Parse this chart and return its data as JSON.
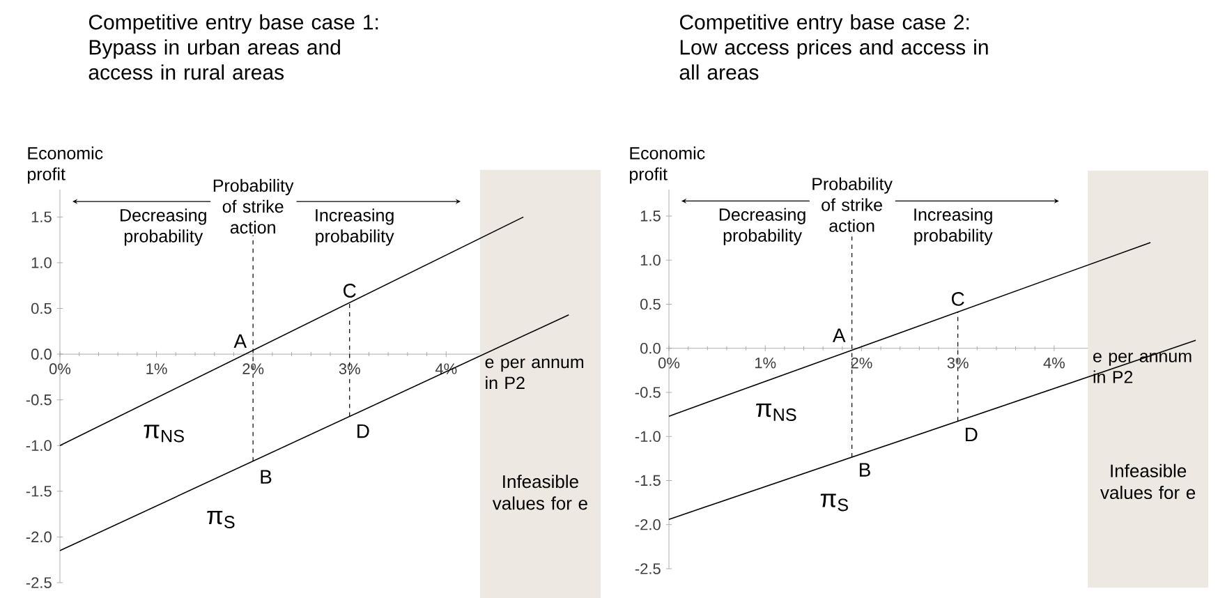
{
  "chart_data": [
    {
      "type": "line",
      "title": "Competitive entry base case 1:",
      "subtitle": "Bypass in urban areas and access in rural areas",
      "xlabel": "e per annum in P2",
      "ylabel": "Economic profit",
      "xlim": [
        0,
        5.6
      ],
      "ylim": [
        -2.5,
        1.8
      ],
      "xticks": [
        {
          "value": 0,
          "label": "0%"
        },
        {
          "value": 1,
          "label": "1%"
        },
        {
          "value": 2,
          "label": "2%"
        },
        {
          "value": 3,
          "label": "3%"
        },
        {
          "value": 4,
          "label": "4%"
        }
      ],
      "yticks": [
        1.5,
        {
          "value": 1,
          "label": "1.0"
        },
        0.5,
        {
          "value": 0,
          "label": "0.0"
        },
        -0.5,
        {
          "value": -1,
          "label": "-1.0"
        },
        -1.5,
        {
          "value": -2,
          "label": "-2.0"
        },
        -2.5
      ],
      "series": [
        {
          "name": "π$_{NS}$",
          "color": "#000000",
          "x": [
            0,
            4.8
          ],
          "values": [
            -1.0,
            1.5
          ]
        },
        {
          "name": "π$_{S}$",
          "color": "#000000",
          "x": [
            0,
            5.27
          ],
          "values": [
            -2.15,
            0.43
          ]
        }
      ],
      "ref_lines": [
        {
          "axis": "x",
          "value": 2,
          "label": "Probability of strike action",
          "line_style": "dashed"
        },
        {
          "axis": "x",
          "value": 3,
          "line_style": "dashed"
        }
      ],
      "bands": [
        {
          "axis": "x",
          "from": 4.35,
          "to": 5.6,
          "label": "Infeasible values for e",
          "color": "#ede9e2"
        }
      ],
      "annotations": [
        {
          "text": "A",
          "x": 2,
          "y": 0
        },
        {
          "text": "B",
          "x": 2,
          "y": -1.2
        },
        {
          "text": "C",
          "x": 3,
          "y": 0.55
        },
        {
          "text": "D",
          "x": 3,
          "y": -0.7
        },
        "Decreasing probability",
        "Increasing probability"
      ]
    },
    {
      "type": "line",
      "title": "Competitive entry base case 2:",
      "subtitle": "Low access prices and access in all areas",
      "xlabel": "e per annum in P2",
      "ylabel": "Economic profit",
      "xlim": [
        0,
        5.6
      ],
      "ylim": [
        -2.5,
        1.8
      ],
      "xticks": [
        {
          "value": 0,
          "label": "0%"
        },
        {
          "value": 1,
          "label": "1%"
        },
        {
          "value": 2,
          "label": "2%"
        },
        {
          "value": 3,
          "label": "3%"
        },
        {
          "value": 4,
          "label": "4%"
        }
      ],
      "yticks": [
        1.5,
        {
          "value": 1,
          "label": "1.0"
        },
        0.5,
        {
          "value": 0,
          "label": "0.0"
        },
        -0.5,
        {
          "value": -1,
          "label": "-1.0"
        },
        -1.5,
        {
          "value": -2,
          "label": "-2.0"
        },
        -2.5
      ],
      "series": [
        {
          "name": "π$_{NS}$",
          "color": "#000000",
          "x": [
            0,
            5.0
          ],
          "values": [
            -0.77,
            1.2
          ]
        },
        {
          "name": "π$_{S}$",
          "color": "#000000",
          "x": [
            0,
            5.47
          ],
          "values": [
            -1.94,
            0.09
          ]
        }
      ],
      "ref_lines": [
        {
          "axis": "x",
          "value": 1.9,
          "label": "Probability of strike action",
          "line_style": "dashed"
        },
        {
          "axis": "x",
          "value": 3,
          "line_style": "dashed"
        }
      ],
      "bands": [
        {
          "axis": "x",
          "from": 4.35,
          "to": 5.6,
          "label": "Infeasible values for e",
          "color": "#ede9e2"
        }
      ],
      "annotations": [
        {
          "text": "A",
          "x": 1.9,
          "y": 0
        },
        {
          "text": "B",
          "x": 1.9,
          "y": -1.23
        },
        {
          "text": "C",
          "x": 3,
          "y": 0.41
        },
        {
          "text": "D",
          "x": 3,
          "y": -0.83
        },
        "Decreasing probability",
        "Increasing probability"
      ]
    }
  ]
}
